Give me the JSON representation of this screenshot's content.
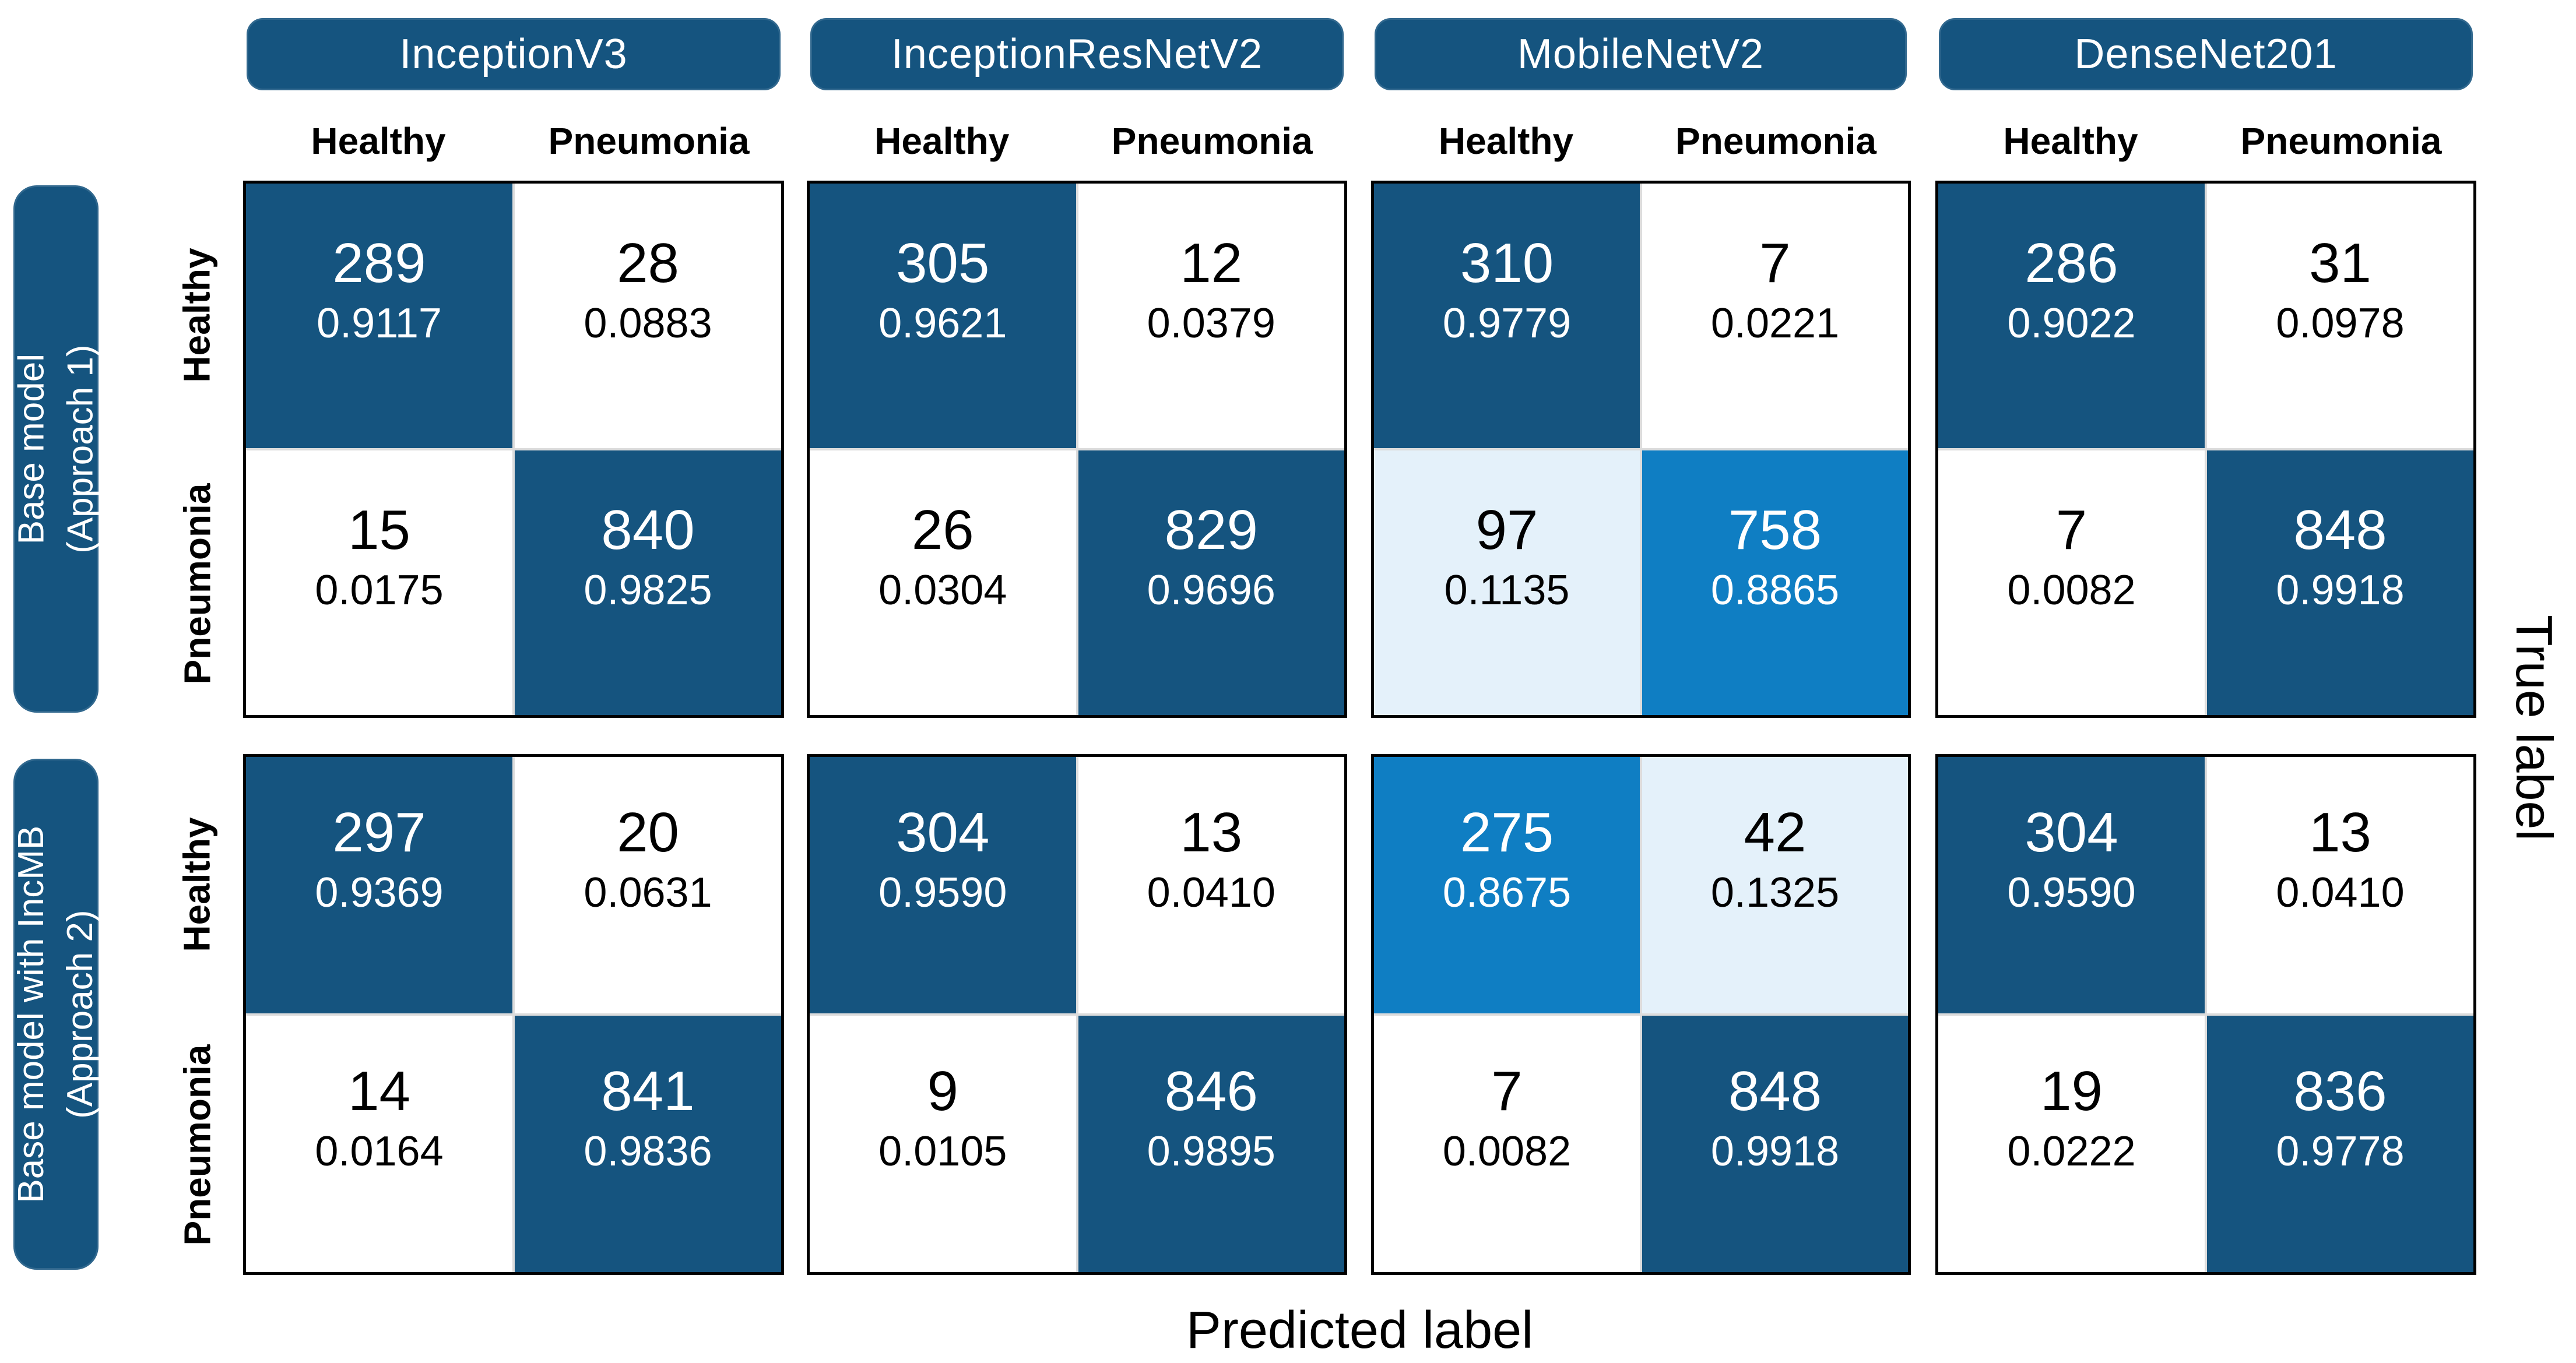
{
  "axis": {
    "predicted": "Predicted label",
    "true": "True label"
  },
  "models": [
    "InceptionV3",
    "InceptionResNetV2",
    "MobileNetV2",
    "DenseNet201"
  ],
  "col_labels": [
    "Healthy",
    "Pneumonia"
  ],
  "colors": {
    "dark_blue": "#15547F",
    "bright_blue": "#0F7EC3",
    "pale_blue": "#E4F1FA",
    "text_on_dark": "#FFFFFF",
    "text": "#000000",
    "matrix_border": "#000000",
    "grid_line": "#DCDCDC"
  },
  "grid": {
    "rows": [
      {
        "approach_line1": "Base model",
        "approach_line2": "(Approach 1)",
        "row_labels": [
          "Healthy",
          "Pneumonia"
        ],
        "mats": [
          {
            "model": "InceptionV3",
            "cells": [
              {
                "count": "289",
                "frac": "0.9117"
              },
              {
                "count": "28",
                "frac": "0.0883"
              },
              {
                "count": "15",
                "frac": "0.0175"
              },
              {
                "count": "840",
                "frac": "0.9825"
              }
            ]
          },
          {
            "model": "InceptionResNetV2",
            "cells": [
              {
                "count": "305",
                "frac": "0.9621"
              },
              {
                "count": "12",
                "frac": "0.0379"
              },
              {
                "count": "26",
                "frac": "0.0304"
              },
              {
                "count": "829",
                "frac": "0.9696"
              }
            ]
          },
          {
            "model": "MobileNetV2",
            "cells": [
              {
                "count": "310",
                "frac": "0.9779"
              },
              {
                "count": "7",
                "frac": "0.0221"
              },
              {
                "count": "97",
                "frac": "0.1135"
              },
              {
                "count": "758",
                "frac": "0.8865"
              }
            ]
          },
          {
            "model": "DenseNet201",
            "cells": [
              {
                "count": "286",
                "frac": "0.9022"
              },
              {
                "count": "31",
                "frac": "0.0978"
              },
              {
                "count": "7",
                "frac": "0.0082"
              },
              {
                "count": "848",
                "frac": "0.9918"
              }
            ]
          }
        ]
      },
      {
        "approach_line1": "Base model with IncMB",
        "approach_line2": "(Approach 2)",
        "row_labels": [
          "Healthy",
          "Pneumonia"
        ],
        "mats": [
          {
            "model": "InceptionV3",
            "cells": [
              {
                "count": "297",
                "frac": "0.9369"
              },
              {
                "count": "20",
                "frac": "0.0631"
              },
              {
                "count": "14",
                "frac": "0.0164"
              },
              {
                "count": "841",
                "frac": "0.9836"
              }
            ]
          },
          {
            "model": "InceptionResNetV2",
            "cells": [
              {
                "count": "304",
                "frac": "0.9590"
              },
              {
                "count": "13",
                "frac": "0.0410"
              },
              {
                "count": "9",
                "frac": "0.0105"
              },
              {
                "count": "846",
                "frac": "0.9895"
              }
            ]
          },
          {
            "model": "MobileNetV2",
            "cells": [
              {
                "count": "275",
                "frac": "0.8675"
              },
              {
                "count": "42",
                "frac": "0.1325"
              },
              {
                "count": "7",
                "frac": "0.0082"
              },
              {
                "count": "848",
                "frac": "0.9918"
              }
            ]
          },
          {
            "model": "DenseNet201",
            "cells": [
              {
                "count": "304",
                "frac": "0.9590"
              },
              {
                "count": "13",
                "frac": "0.0410"
              },
              {
                "count": "19",
                "frac": "0.0222"
              },
              {
                "count": "836",
                "frac": "0.9778"
              }
            ]
          }
        ]
      }
    ]
  },
  "chart_data": {
    "type": "heatmap",
    "subtype": "confusion-matrix-grid",
    "xlabel": "Predicted label",
    "ylabel": "True label",
    "x_ticklabels": [
      "Healthy",
      "Pneumonia"
    ],
    "y_ticklabels": [
      "Healthy",
      "Pneumonia"
    ],
    "column_groups": [
      "InceptionV3",
      "InceptionResNetV2",
      "MobileNetV2",
      "DenseNet201"
    ],
    "row_groups": [
      "Base model (Approach 1)",
      "Base model with IncMB (Approach 2)"
    ],
    "matrices": [
      {
        "row_group": "Base model (Approach 1)",
        "column_group": "InceptionV3",
        "counts": [
          [
            289,
            28
          ],
          [
            15,
            840
          ]
        ],
        "fractions": [
          [
            0.9117,
            0.0883
          ],
          [
            0.0175,
            0.9825
          ]
        ]
      },
      {
        "row_group": "Base model (Approach 1)",
        "column_group": "InceptionResNetV2",
        "counts": [
          [
            305,
            12
          ],
          [
            26,
            829
          ]
        ],
        "fractions": [
          [
            0.9621,
            0.0379
          ],
          [
            0.0304,
            0.9696
          ]
        ]
      },
      {
        "row_group": "Base model (Approach 1)",
        "column_group": "MobileNetV2",
        "counts": [
          [
            310,
            7
          ],
          [
            97,
            758
          ]
        ],
        "fractions": [
          [
            0.9779,
            0.0221
          ],
          [
            0.1135,
            0.8865
          ]
        ]
      },
      {
        "row_group": "Base model (Approach 1)",
        "column_group": "DenseNet201",
        "counts": [
          [
            286,
            31
          ],
          [
            7,
            848
          ]
        ],
        "fractions": [
          [
            0.9022,
            0.0978
          ],
          [
            0.0082,
            0.9918
          ]
        ]
      },
      {
        "row_group": "Base model with IncMB (Approach 2)",
        "column_group": "InceptionV3",
        "counts": [
          [
            297,
            20
          ],
          [
            14,
            841
          ]
        ],
        "fractions": [
          [
            0.9369,
            0.0631
          ],
          [
            0.0164,
            0.9836
          ]
        ]
      },
      {
        "row_group": "Base model with IncMB (Approach 2)",
        "column_group": "InceptionResNetV2",
        "counts": [
          [
            304,
            13
          ],
          [
            9,
            846
          ]
        ],
        "fractions": [
          [
            0.959,
            0.041
          ],
          [
            0.0105,
            0.9895
          ]
        ]
      },
      {
        "row_group": "Base model with IncMB (Approach 2)",
        "column_group": "MobileNetV2",
        "counts": [
          [
            275,
            42
          ],
          [
            7,
            848
          ]
        ],
        "fractions": [
          [
            0.8675,
            0.1325
          ],
          [
            0.0082,
            0.9918
          ]
        ]
      },
      {
        "row_group": "Base model with IncMB (Approach 2)",
        "column_group": "DenseNet201",
        "counts": [
          [
            304,
            13
          ],
          [
            19,
            836
          ]
        ],
        "fractions": [
          [
            0.959,
            0.041
          ],
          [
            0.0222,
            0.9778
          ]
        ]
      }
    ]
  }
}
